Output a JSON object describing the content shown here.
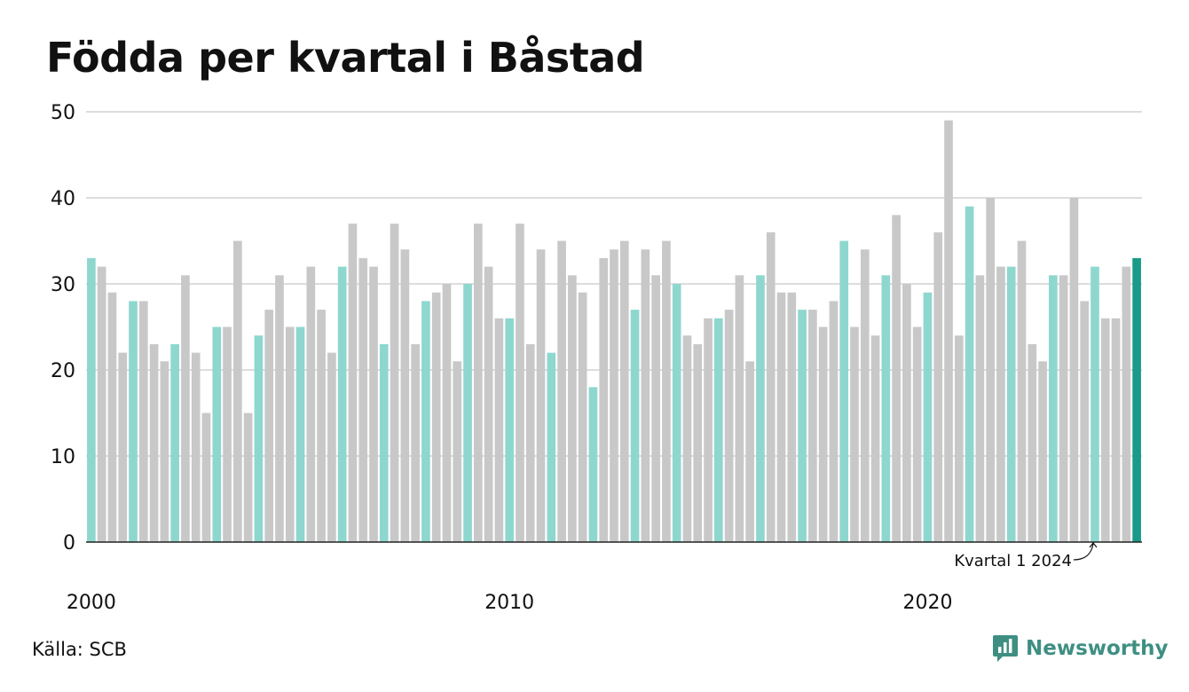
{
  "title": "Födda per kvartal i Båstad",
  "source": "Källa: SCB",
  "brand": "Newsworthy",
  "colors": {
    "q1": "#8ed7cf",
    "other": "#c8c8c8",
    "latest": "#1a9a88",
    "grid": "#dddddd",
    "axis": "#222222",
    "brand": "#3e8f82"
  },
  "annotation": "Kvartal 1 2024",
  "chart_data": {
    "type": "bar",
    "title": "Födda per kvartal i Båstad",
    "xlabel": "",
    "ylabel": "",
    "ylim": [
      0,
      50
    ],
    "yticks": [
      0,
      10,
      20,
      30,
      40,
      50
    ],
    "xtick_labels": [
      "2000",
      "2010",
      "2020"
    ],
    "grid": true,
    "highlight": "Q1 bars in teal, latest bar in dark teal",
    "start_year": 2000,
    "values": [
      33,
      32,
      29,
      22,
      28,
      28,
      23,
      21,
      23,
      31,
      22,
      15,
      25,
      25,
      35,
      15,
      24,
      27,
      31,
      25,
      25,
      32,
      27,
      22,
      32,
      37,
      33,
      32,
      23,
      37,
      34,
      23,
      28,
      29,
      30,
      21,
      30,
      37,
      32,
      26,
      26,
      37,
      23,
      34,
      22,
      35,
      31,
      29,
      18,
      33,
      34,
      35,
      27,
      34,
      31,
      35,
      30,
      24,
      23,
      26,
      26,
      27,
      31,
      21,
      31,
      36,
      29,
      29,
      27,
      27,
      25,
      28,
      35,
      25,
      34,
      24,
      31,
      38,
      30,
      25,
      29,
      36,
      49,
      24,
      39,
      31,
      40,
      32,
      32,
      35,
      23,
      21,
      31,
      31,
      40,
      28,
      32,
      26,
      26,
      32,
      33
    ]
  }
}
